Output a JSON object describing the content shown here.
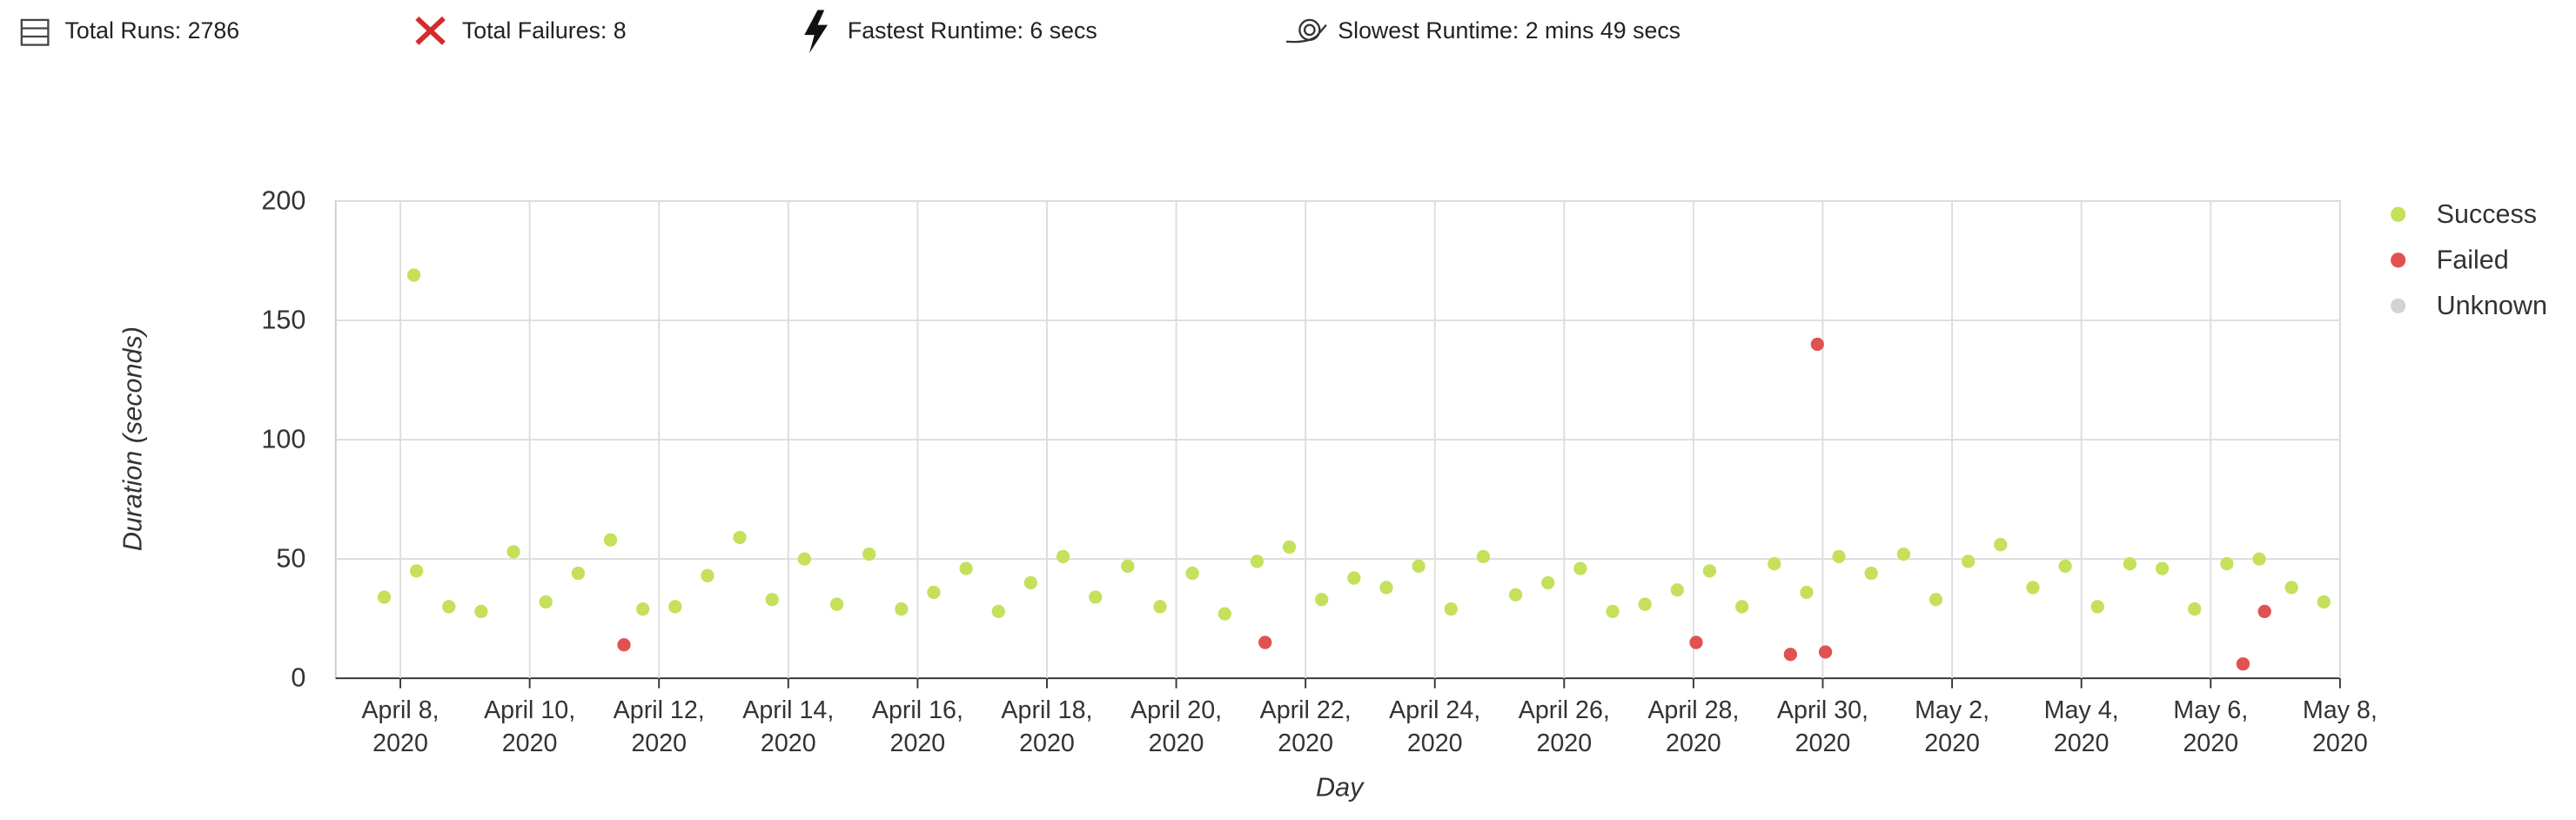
{
  "header": {
    "stats": [
      "Total Runs: 2786",
      "Total Failures: 8",
      "Fastest Runtime: 6 secs",
      "Slowest Runtime: 2 mins 49 secs"
    ]
  },
  "chart_data": {
    "type": "scatter",
    "x_label": "Day",
    "y_label": "Duration (seconds)",
    "xlim": [
      "2020-04-07T00:00",
      "2020-05-08T00:00"
    ],
    "xticks": [
      {
        "value": "2020-04-08T00:00",
        "label": "April 8,\n2020"
      },
      {
        "value": "2020-04-10T00:00",
        "label": "April 10,\n2020"
      },
      {
        "value": "2020-04-12T00:00",
        "label": "April 12,\n2020"
      },
      {
        "value": "2020-04-14T00:00",
        "label": "April 14,\n2020"
      },
      {
        "value": "2020-04-16T00:00",
        "label": "April 16,\n2020"
      },
      {
        "value": "2020-04-18T00:00",
        "label": "April 18,\n2020"
      },
      {
        "value": "2020-04-20T00:00",
        "label": "April 20,\n2020"
      },
      {
        "value": "2020-04-22T00:00",
        "label": "April 22,\n2020"
      },
      {
        "value": "2020-04-24T00:00",
        "label": "April 24,\n2020"
      },
      {
        "value": "2020-04-26T00:00",
        "label": "April 26,\n2020"
      },
      {
        "value": "2020-04-28T00:00",
        "label": "April 28,\n2020"
      },
      {
        "value": "2020-04-30T00:00",
        "label": "April 30,\n2020"
      },
      {
        "value": "2020-05-02T00:00",
        "label": "May 2,\n2020"
      },
      {
        "value": "2020-05-04T00:00",
        "label": "May 4,\n2020"
      },
      {
        "value": "2020-05-06T00:00",
        "label": "May 6,\n2020"
      },
      {
        "value": "2020-05-08T00:00",
        "label": "May 8,\n2020"
      }
    ],
    "ylim": [
      0,
      200
    ],
    "yticks": [
      0,
      50,
      100,
      150,
      200
    ],
    "grid": true,
    "legend": "right",
    "series": [
      {
        "name": "Success",
        "color": "#c5e05a",
        "x": [
          "2020-04-07T18:00",
          "2020-04-08T05:00",
          "2020-04-08T06:00",
          "2020-04-08T18:00",
          "2020-04-09T06:00",
          "2020-04-09T18:00",
          "2020-04-10T06:00",
          "2020-04-10T18:00",
          "2020-04-11T06:00",
          "2020-04-11T18:00",
          "2020-04-12T06:00",
          "2020-04-12T18:00",
          "2020-04-13T06:00",
          "2020-04-13T18:00",
          "2020-04-14T06:00",
          "2020-04-14T18:00",
          "2020-04-15T06:00",
          "2020-04-15T18:00",
          "2020-04-16T06:00",
          "2020-04-16T18:00",
          "2020-04-17T06:00",
          "2020-04-17T18:00",
          "2020-04-18T06:00",
          "2020-04-18T18:00",
          "2020-04-19T06:00",
          "2020-04-19T18:00",
          "2020-04-20T06:00",
          "2020-04-20T18:00",
          "2020-04-21T06:00",
          "2020-04-21T18:00",
          "2020-04-22T06:00",
          "2020-04-22T18:00",
          "2020-04-23T06:00",
          "2020-04-23T18:00",
          "2020-04-24T06:00",
          "2020-04-24T18:00",
          "2020-04-25T06:00",
          "2020-04-25T18:00",
          "2020-04-26T06:00",
          "2020-04-26T18:00",
          "2020-04-27T06:00",
          "2020-04-27T18:00",
          "2020-04-28T06:00",
          "2020-04-28T18:00",
          "2020-04-29T06:00",
          "2020-04-29T18:00",
          "2020-04-30T06:00",
          "2020-04-30T18:00",
          "2020-05-01T06:00",
          "2020-05-01T18:00",
          "2020-05-02T06:00",
          "2020-05-02T18:00",
          "2020-05-03T06:00",
          "2020-05-03T18:00",
          "2020-05-04T06:00",
          "2020-05-04T18:00",
          "2020-05-05T06:00",
          "2020-05-05T18:00",
          "2020-05-06T06:00",
          "2020-05-06T18:00",
          "2020-05-07T06:00",
          "2020-05-07T18:00"
        ],
        "values": [
          34,
          169,
          45,
          30,
          28,
          53,
          32,
          44,
          58,
          29,
          30,
          43,
          59,
          33,
          50,
          31,
          52,
          29,
          36,
          46,
          28,
          40,
          51,
          34,
          47,
          30,
          44,
          27,
          49,
          55,
          33,
          42,
          38,
          47,
          29,
          51,
          35,
          40,
          46,
          28,
          31,
          37,
          45,
          30,
          48,
          36,
          51,
          44,
          52,
          33,
          49,
          56,
          38,
          47,
          30,
          48,
          46,
          29,
          48,
          50,
          38,
          32
        ]
      },
      {
        "name": "Failed",
        "color": "#e05252",
        "x": [
          "2020-04-11T11:00",
          "2020-04-21T09:00",
          "2020-04-28T01:00",
          "2020-04-29T12:00",
          "2020-04-29T22:00",
          "2020-04-30T01:00",
          "2020-05-06T12:00",
          "2020-05-06T20:00"
        ],
        "values": [
          14,
          15,
          15,
          10,
          140,
          11,
          6,
          28
        ]
      },
      {
        "name": "Unknown",
        "color": "#d3d3d3",
        "x": [],
        "values": []
      }
    ]
  }
}
